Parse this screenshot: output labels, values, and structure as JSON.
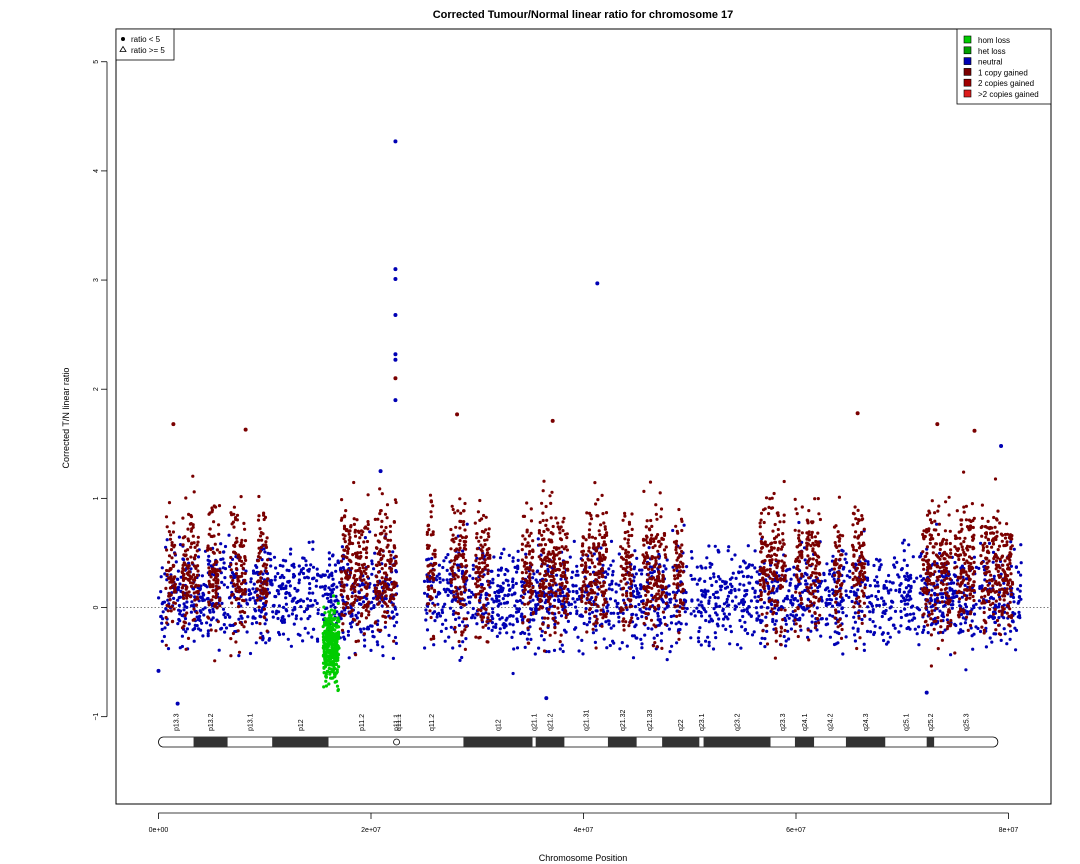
{
  "chart_data": {
    "type": "scatter",
    "title": "Corrected Tumour/Normal linear ratio for chromosome  17",
    "xlabel": "Chromosome Position",
    "ylabel": "Corrected T/N linear ratio",
    "xlim": [
      -4000000,
      84000000
    ],
    "ylim": [
      -1.8,
      5.3
    ],
    "x_ticks": [
      0,
      20000000,
      40000000,
      60000000,
      80000000
    ],
    "x_tick_labels": [
      "0e+00",
      "2e+07",
      "4e+07",
      "6e+07",
      "8e+07"
    ],
    "y_ticks": [
      -1,
      0,
      1,
      2,
      3,
      4,
      5
    ],
    "y_tick_labels": [
      "−1",
      "0",
      "1",
      "2",
      "3",
      "4",
      "5"
    ],
    "reference_line_y": 0,
    "shape_legend": {
      "placement": "top-left",
      "items": [
        {
          "symbol": "filled-circle",
          "label": "ratio < 5"
        },
        {
          "symbol": "open-triangle",
          "label": "ratio >= 5"
        }
      ]
    },
    "legend": {
      "placement": "top-right",
      "items": [
        {
          "label": "hom loss",
          "color": "#00cc00"
        },
        {
          "label": "het loss",
          "color": "#00a000"
        },
        {
          "label": "neutral",
          "color": "#0000b4"
        },
        {
          "label": "1 copy gained",
          "color": "#7a0000"
        },
        {
          "label": "2 copies gained",
          "color": "#a00000"
        },
        {
          "label": ">2 copies gained",
          "color": "#dd1c1c"
        }
      ]
    },
    "series": [
      {
        "name": "neutral",
        "color": "#0000b4",
        "baseline_y": 0.1,
        "spread": 0.32,
        "x_ranges": [
          [
            0,
            81200000
          ]
        ]
      },
      {
        "name": "1 copy gained",
        "color": "#7a0000",
        "baseline_y": 0.4,
        "spread": 0.5,
        "x_ranges": [
          [
            700000,
            1600000
          ],
          [
            2200000,
            3800000
          ],
          [
            4600000,
            5800000
          ],
          [
            6800000,
            8200000
          ],
          [
            9300000,
            10300000
          ],
          [
            17200000,
            19800000
          ],
          [
            20400000,
            22400000
          ],
          [
            25300000,
            26100000
          ],
          [
            27500000,
            29000000
          ],
          [
            29800000,
            31200000
          ],
          [
            34200000,
            35300000
          ],
          [
            35800000,
            38600000
          ],
          [
            39800000,
            42200000
          ],
          [
            43500000,
            44600000
          ],
          [
            45600000,
            47800000
          ],
          [
            48500000,
            49400000
          ],
          [
            56600000,
            59000000
          ],
          [
            59900000,
            60600000
          ],
          [
            61000000,
            62300000
          ],
          [
            63600000,
            64400000
          ],
          [
            65300000,
            66500000
          ],
          [
            71900000,
            74600000
          ],
          [
            74900000,
            76800000
          ],
          [
            77400000,
            80400000
          ]
        ]
      },
      {
        "name": "hom loss",
        "color": "#00cc00",
        "baseline_y": -0.35,
        "spread": 0.22,
        "x_ranges": [
          [
            15500000,
            17000000
          ]
        ]
      }
    ],
    "highlight_points": [
      {
        "x": 22300000,
        "y": 4.27,
        "series": "neutral"
      },
      {
        "x": 22300000,
        "y": 3.1,
        "series": "neutral"
      },
      {
        "x": 22300000,
        "y": 3.01,
        "series": "neutral"
      },
      {
        "x": 22300000,
        "y": 2.68,
        "series": "neutral"
      },
      {
        "x": 22300000,
        "y": 2.32,
        "series": "neutral"
      },
      {
        "x": 22300000,
        "y": 2.27,
        "series": "neutral"
      },
      {
        "x": 22300000,
        "y": 2.1,
        "series": "1 copy gained"
      },
      {
        "x": 22300000,
        "y": 1.9,
        "series": "neutral"
      },
      {
        "x": 41300000,
        "y": 2.97,
        "series": "neutral"
      },
      {
        "x": 65800000,
        "y": 1.78,
        "series": "1 copy gained"
      },
      {
        "x": 28100000,
        "y": 1.77,
        "series": "1 copy gained"
      },
      {
        "x": 37100000,
        "y": 1.71,
        "series": "1 copy gained"
      },
      {
        "x": 1400000,
        "y": 1.68,
        "series": "1 copy gained"
      },
      {
        "x": 73300000,
        "y": 1.68,
        "series": "1 copy gained"
      },
      {
        "x": 8200000,
        "y": 1.63,
        "series": "1 copy gained"
      },
      {
        "x": 76800000,
        "y": 1.62,
        "series": "1 copy gained"
      },
      {
        "x": 79300000,
        "y": 1.48,
        "series": "neutral"
      },
      {
        "x": 20900000,
        "y": 1.25,
        "series": "neutral"
      },
      {
        "x": 36500000,
        "y": -0.83,
        "series": "neutral"
      },
      {
        "x": 1800000,
        "y": -0.88,
        "series": "neutral"
      },
      {
        "x": 72300000,
        "y": -0.78,
        "series": "neutral"
      },
      {
        "x": 0,
        "y": -0.58,
        "series": "neutral"
      }
    ],
    "ideogram": {
      "centromere": 22500000,
      "bands": [
        {
          "name": "p13.3",
          "start": 0,
          "end": 3300000,
          "stain": "gneg"
        },
        {
          "name": "p13.2",
          "start": 3300000,
          "end": 6500000,
          "stain": "gpos"
        },
        {
          "name": "p13.1",
          "start": 6500000,
          "end": 10700000,
          "stain": "gneg"
        },
        {
          "name": "p12",
          "start": 10700000,
          "end": 16000000,
          "stain": "gpos"
        },
        {
          "name": "p11.2",
          "start": 16000000,
          "end": 22200000,
          "stain": "gneg"
        },
        {
          "name": "p11.1",
          "start": 22200000,
          "end": 22500000,
          "stain": "acen"
        },
        {
          "name": "q11.1",
          "start": 22500000,
          "end": 22700000,
          "stain": "acen"
        },
        {
          "name": "q11.2",
          "start": 22700000,
          "end": 28700000,
          "stain": "gneg"
        },
        {
          "name": "q12",
          "start": 28700000,
          "end": 35200000,
          "stain": "gpos"
        },
        {
          "name": "q21.1",
          "start": 35200000,
          "end": 35500000,
          "stain": "gneg"
        },
        {
          "name": "q21.2",
          "start": 35500000,
          "end": 38200000,
          "stain": "gpos"
        },
        {
          "name": "q21.31",
          "start": 38200000,
          "end": 42300000,
          "stain": "gneg"
        },
        {
          "name": "q21.32",
          "start": 42300000,
          "end": 45000000,
          "stain": "gpos"
        },
        {
          "name": "q21.33",
          "start": 45000000,
          "end": 47400000,
          "stain": "gneg"
        },
        {
          "name": "q22",
          "start": 47400000,
          "end": 50900000,
          "stain": "gpos"
        },
        {
          "name": "q23.1",
          "start": 50900000,
          "end": 51300000,
          "stain": "gneg"
        },
        {
          "name": "q23.2",
          "start": 51300000,
          "end": 57600000,
          "stain": "gpos"
        },
        {
          "name": "q23.3",
          "start": 57600000,
          "end": 59900000,
          "stain": "gneg"
        },
        {
          "name": "q24.1",
          "start": 59900000,
          "end": 61700000,
          "stain": "gpos"
        },
        {
          "name": "q24.2",
          "start": 61700000,
          "end": 64700000,
          "stain": "gneg"
        },
        {
          "name": "q24.3",
          "start": 64700000,
          "end": 68400000,
          "stain": "gpos"
        },
        {
          "name": "q25.1",
          "start": 68400000,
          "end": 72300000,
          "stain": "gneg"
        },
        {
          "name": "q25.2",
          "start": 72300000,
          "end": 73000000,
          "stain": "gpos"
        },
        {
          "name": "q25.3",
          "start": 73000000,
          "end": 79000000,
          "stain": "gneg"
        }
      ]
    }
  }
}
